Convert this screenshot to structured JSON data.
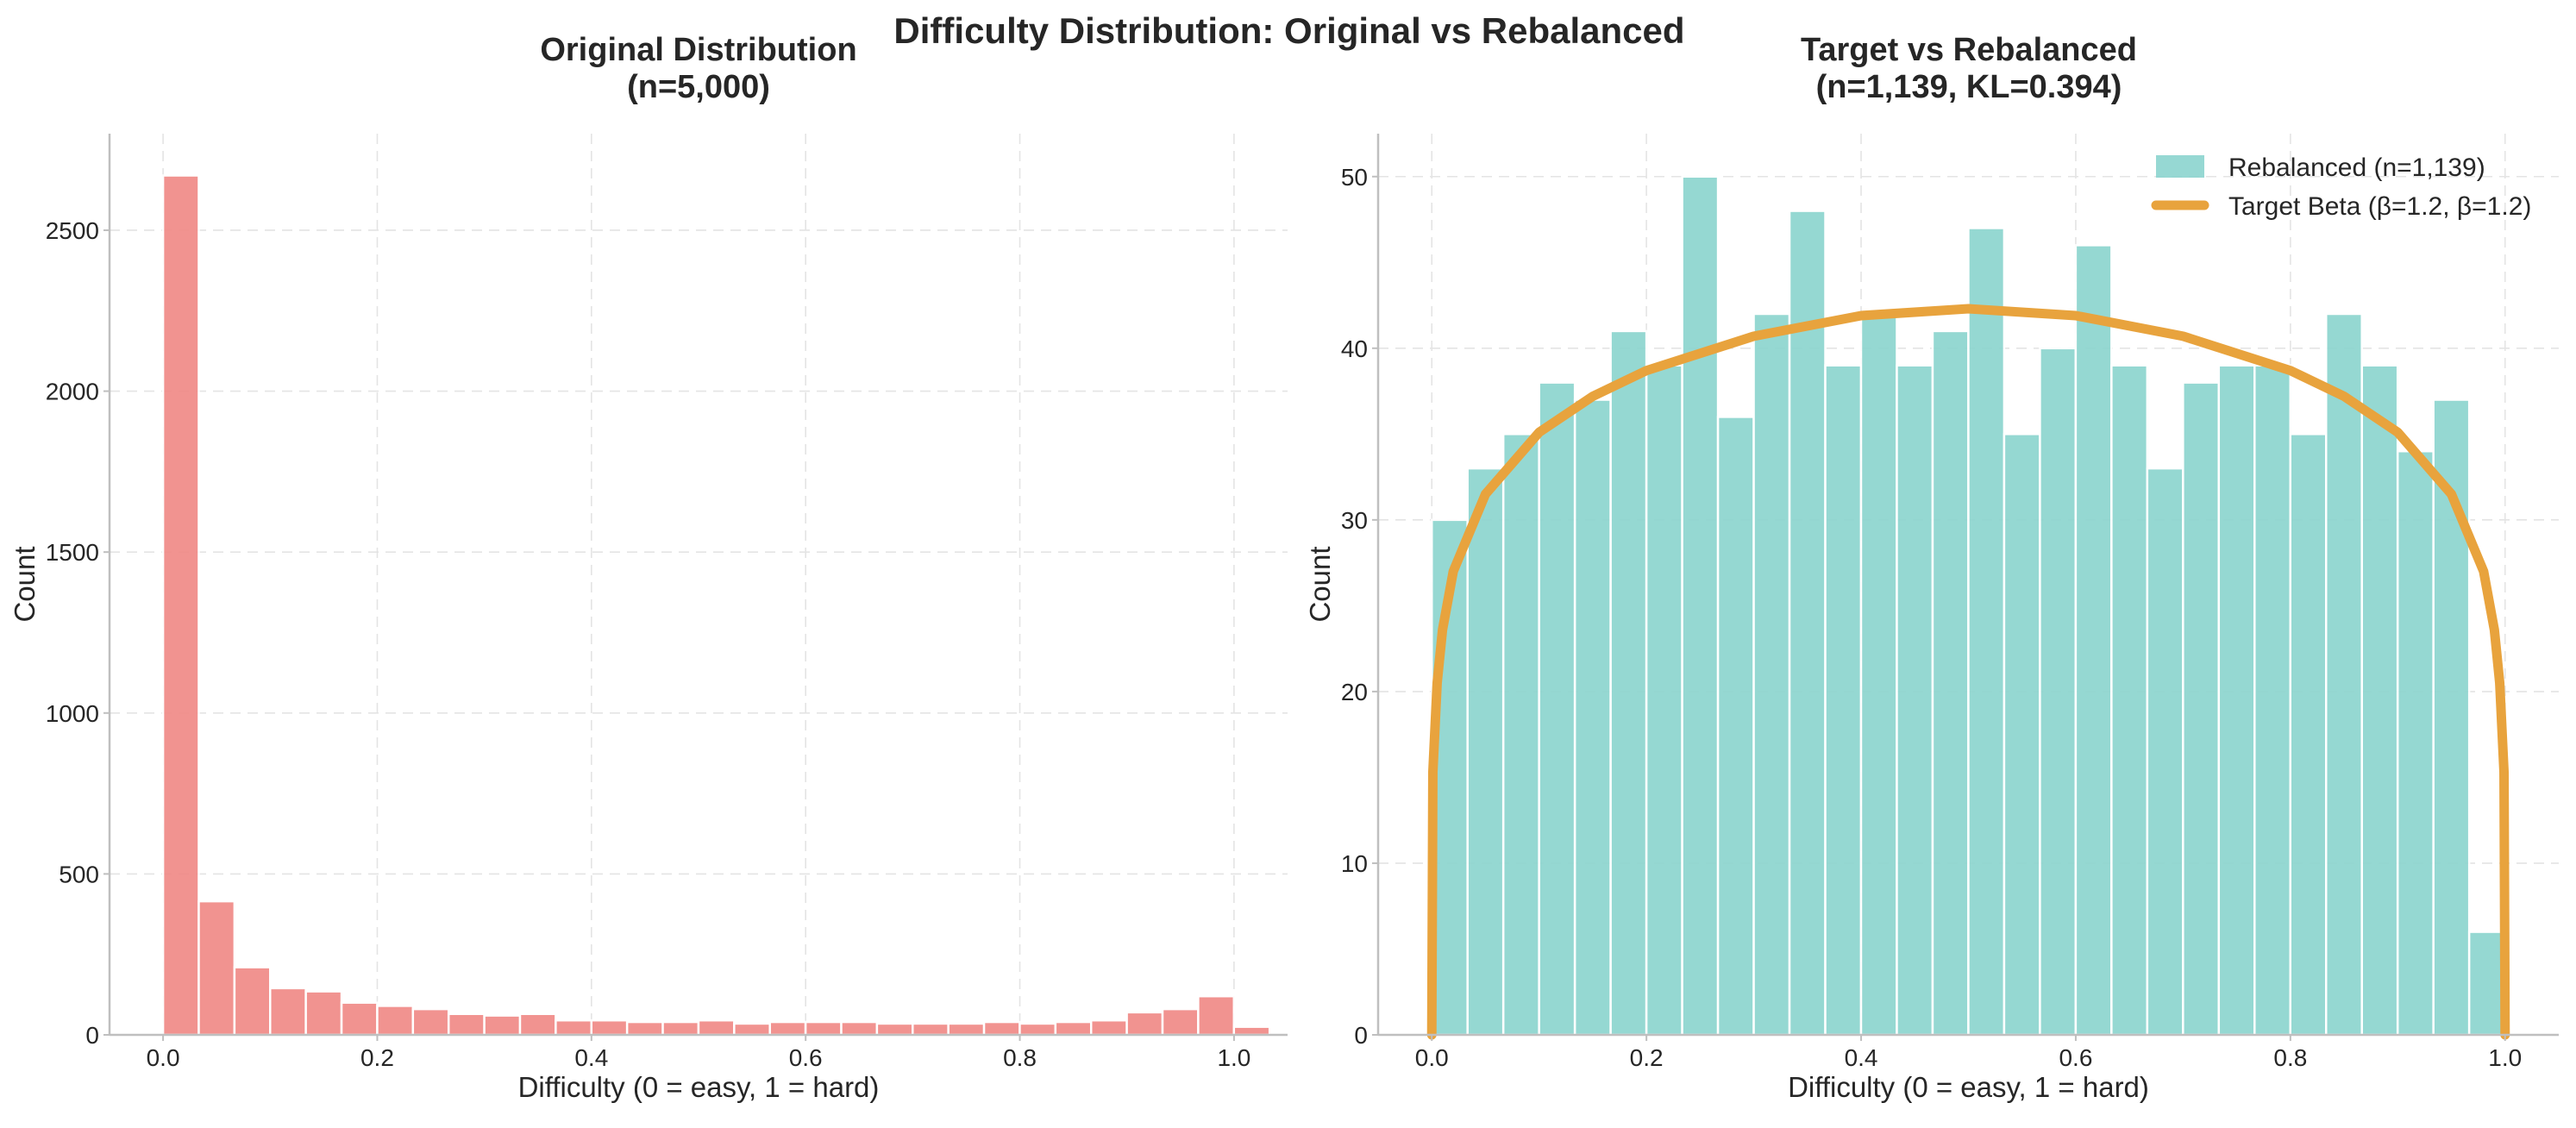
{
  "figure": {
    "suptitle": "Difficulty Distribution: Original vs Rebalanced"
  },
  "chart_data": [
    {
      "type": "bar",
      "title": "Original Distribution\n(n=5,000)",
      "xlabel": "Difficulty (0 = easy, 1 = hard)",
      "ylabel": "Count",
      "xlim": [
        -0.05,
        1.05
      ],
      "ylim": [
        0,
        2800
      ],
      "xticks": [
        0.0,
        0.2,
        0.4,
        0.6,
        0.8,
        1.0
      ],
      "xtick_labels": [
        "0.0",
        "0.2",
        "0.4",
        "0.6",
        "0.8",
        "1.0"
      ],
      "yticks": [
        0,
        500,
        1000,
        1500,
        2000,
        2500
      ],
      "ytick_labels": [
        "0",
        "500",
        "1000",
        "1500",
        "2000",
        "2500"
      ],
      "bin_start": 0.0,
      "bin_width": 0.03333,
      "values": [
        2670,
        415,
        210,
        145,
        135,
        100,
        90,
        80,
        65,
        60,
        65,
        45,
        45,
        40,
        40,
        45,
        35,
        40,
        40,
        40,
        35,
        35,
        35,
        40,
        35,
        40,
        45,
        70,
        80,
        120,
        25
      ],
      "color": "#f08a87",
      "grid": true
    },
    {
      "type": "bar",
      "title": "Target vs Rebalanced\n(n=1,139, KL=0.394)",
      "xlabel": "Difficulty (0 = easy, 1 = hard)",
      "ylabel": "Count",
      "xlim": [
        -0.05,
        1.05
      ],
      "ylim": [
        0,
        52.5
      ],
      "xticks": [
        0.0,
        0.2,
        0.4,
        0.6,
        0.8,
        1.0
      ],
      "xtick_labels": [
        "0.0",
        "0.2",
        "0.4",
        "0.6",
        "0.8",
        "1.0"
      ],
      "yticks": [
        0,
        10,
        20,
        30,
        40,
        50
      ],
      "ytick_labels": [
        "0",
        "10",
        "20",
        "30",
        "40",
        "50"
      ],
      "bin_start": 0.0,
      "bin_width": 0.03333,
      "values": [
        30,
        33,
        35,
        38,
        37,
        41,
        39,
        50,
        36,
        42,
        48,
        39,
        42,
        39,
        41,
        47,
        35,
        40,
        46,
        39,
        33,
        38,
        39,
        39,
        35,
        42,
        39,
        34,
        37,
        6
      ],
      "color": "#8dd5cf",
      "grid": true,
      "legend_position": "top-right",
      "series": [
        {
          "name": "Rebalanced (n=1,139)",
          "kind": "histogram",
          "color": "#8dd5cf"
        },
        {
          "name": "Target Beta (β=1.2, β=1.2)",
          "kind": "line",
          "color": "#e8a33d",
          "x": [
            0.0,
            0.001,
            0.005,
            0.01,
            0.02,
            0.05,
            0.1,
            0.15,
            0.2,
            0.3,
            0.4,
            0.5,
            0.6,
            0.7,
            0.8,
            0.85,
            0.9,
            0.95,
            0.98,
            0.99,
            0.995,
            0.999,
            1.0
          ],
          "y": [
            0,
            15.3,
            20.5,
            23.6,
            27.0,
            31.5,
            35.1,
            37.2,
            38.7,
            40.7,
            41.9,
            42.3,
            41.9,
            40.7,
            38.7,
            37.2,
            35.1,
            31.5,
            27.0,
            23.6,
            20.5,
            15.3,
            0
          ]
        }
      ]
    }
  ]
}
